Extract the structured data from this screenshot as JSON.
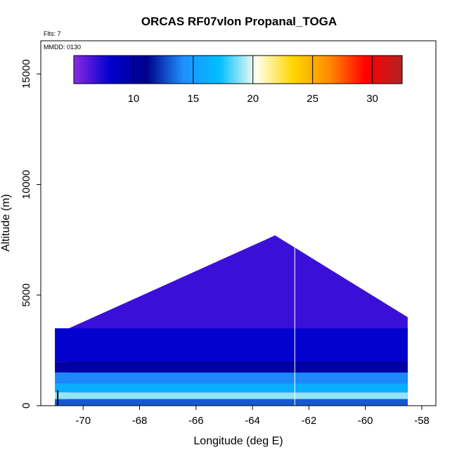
{
  "chart_data": {
    "type": "heatmap",
    "title": "ORCAS RF07vlon Propanal_TOGA",
    "flts_note": "Flts: 7",
    "mmdd_note": "MMDD: 0130",
    "xlabel": "Longitude (deg E)",
    "ylabel": "Altitude (m)",
    "xlim": [
      -71.5,
      -57.5
    ],
    "ylim": [
      0,
      16500
    ],
    "x_ticks": [
      -70,
      -68,
      -66,
      -64,
      -62,
      -60,
      -58
    ],
    "y_ticks": [
      0,
      5000,
      10000,
      15000
    ],
    "colorbar": {
      "range": [
        5,
        32.5
      ],
      "ticks": [
        10,
        15,
        20,
        25,
        30
      ],
      "colors": [
        "#8a2be2",
        "#0000cd",
        "#00008b",
        "#1e90ff",
        "#00bfff",
        "#fffff0",
        "#ffd700",
        "#ff8c00",
        "#ff0000",
        "#b22222"
      ]
    },
    "vertical_line_lon": -62.5,
    "surface_marker_lon": -70.9,
    "mountain": {
      "peak_lon": -63.2,
      "peak_alt": 7700,
      "left_base_lon": -70.5,
      "left_base_alt": 3500,
      "right_base_lon": -58.5,
      "right_base_alt": 4000
    },
    "layers": [
      {
        "alt_top": 300,
        "lon_from": -71.0,
        "lon_to": -58.5,
        "value": 13
      },
      {
        "alt_top": 600,
        "lon_from": -71.0,
        "lon_to": -58.5,
        "value": 19
      },
      {
        "alt_top": 1000,
        "lon_from": -71.0,
        "lon_to": -58.5,
        "value": 16
      },
      {
        "alt_top": 1500,
        "lon_from": -71.0,
        "lon_to": -58.5,
        "value": 14
      },
      {
        "alt_top": 2000,
        "lon_from": -71.0,
        "lon_to": -58.5,
        "value": 10
      },
      {
        "alt_top": 3500,
        "lon_from": -71.0,
        "lon_to": -58.5,
        "value": 8
      }
    ]
  }
}
